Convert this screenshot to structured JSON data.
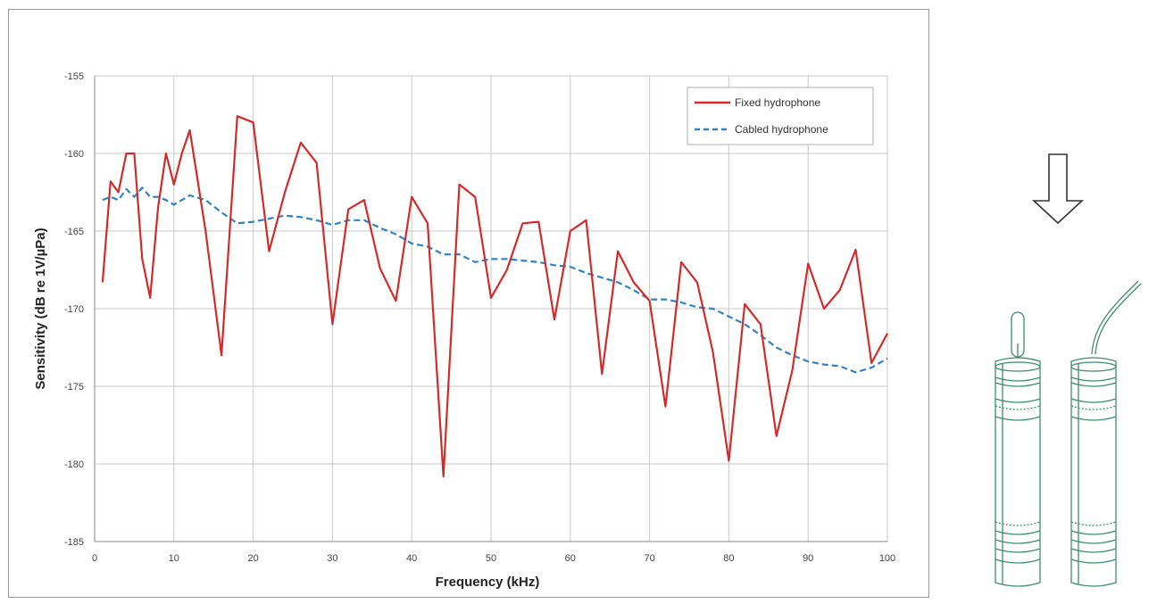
{
  "chart_data": {
    "type": "line",
    "title": "",
    "xlabel": "Frequency (kHz)",
    "ylabel": "Sensitivity (dB re 1V/µPa)",
    "xlim": [
      0,
      100
    ],
    "ylim": [
      -185,
      -155
    ],
    "x_ticks": [
      0,
      10,
      20,
      30,
      40,
      50,
      60,
      70,
      80,
      90,
      100
    ],
    "y_ticks": [
      -155,
      -160,
      -165,
      -170,
      -175,
      -180,
      -185
    ],
    "grid": true,
    "legend_position": "top-right",
    "series": [
      {
        "name": "Fixed hydrophone",
        "color": "#d42a2a",
        "style": "solid",
        "x": [
          1,
          2,
          3,
          4,
          5,
          6,
          7,
          8,
          9,
          10,
          11,
          12,
          14,
          16,
          18,
          20,
          22,
          24,
          26,
          28,
          30,
          32,
          34,
          36,
          38,
          40,
          42,
          44,
          46,
          48,
          50,
          52,
          54,
          56,
          58,
          60,
          62,
          64,
          66,
          68,
          70,
          72,
          74,
          76,
          78,
          80,
          82,
          84,
          86,
          88,
          90,
          92,
          94,
          96,
          98,
          100
        ],
        "values": [
          -168.3,
          -161.8,
          -162.5,
          -160.0,
          -160.0,
          -166.8,
          -169.3,
          -163.5,
          -160.0,
          -162.0,
          -160.0,
          -158.5,
          -165.0,
          -173.0,
          -157.6,
          -158.0,
          -166.3,
          -162.5,
          -159.3,
          -160.6,
          -171.0,
          -163.6,
          -163.0,
          -167.4,
          -169.5,
          -162.8,
          -164.5,
          -180.8,
          -162.0,
          -162.8,
          -169.3,
          -167.5,
          -164.5,
          -164.4,
          -170.7,
          -165.0,
          -164.3,
          -174.2,
          -166.3,
          -168.3,
          -169.5,
          -176.3,
          -167.0,
          -168.3,
          -172.8,
          -179.8,
          -169.7,
          -171.0,
          -178.2,
          -174.0,
          -167.1,
          -170.0,
          -168.8,
          -166.2,
          -173.5,
          -171.6
        ]
      },
      {
        "name": "Cabled hydrophone",
        "color": "#2f82c8",
        "style": "dashed",
        "x": [
          1,
          2,
          3,
          4,
          5,
          6,
          7,
          8,
          9,
          10,
          11,
          12,
          14,
          16,
          18,
          20,
          22,
          24,
          26,
          28,
          30,
          32,
          34,
          36,
          38,
          40,
          42,
          44,
          46,
          48,
          50,
          52,
          54,
          56,
          58,
          60,
          62,
          64,
          66,
          68,
          70,
          72,
          74,
          76,
          78,
          80,
          82,
          84,
          86,
          88,
          90,
          92,
          94,
          96,
          98,
          100
        ],
        "values": [
          -163.0,
          -162.8,
          -163.0,
          -162.3,
          -162.8,
          -162.2,
          -162.8,
          -162.8,
          -163.0,
          -163.3,
          -163.0,
          -162.7,
          -163.0,
          -163.8,
          -164.5,
          -164.4,
          -164.2,
          -164.0,
          -164.1,
          -164.3,
          -164.6,
          -164.3,
          -164.3,
          -164.8,
          -165.2,
          -165.8,
          -166.0,
          -166.5,
          -166.5,
          -167.0,
          -166.8,
          -166.8,
          -166.9,
          -167.0,
          -167.2,
          -167.3,
          -167.7,
          -168.0,
          -168.3,
          -168.8,
          -169.4,
          -169.4,
          -169.6,
          -169.9,
          -170.0,
          -170.5,
          -171.0,
          -171.7,
          -172.5,
          -173.0,
          -173.4,
          -173.6,
          -173.7,
          -174.1,
          -173.8,
          -173.2
        ]
      }
    ]
  },
  "illustration": {
    "arrow_icon": "down-arrow-icon",
    "hydrophone_icon": "hydrophone-pair-icon",
    "line_color": "#3a8f6a"
  }
}
